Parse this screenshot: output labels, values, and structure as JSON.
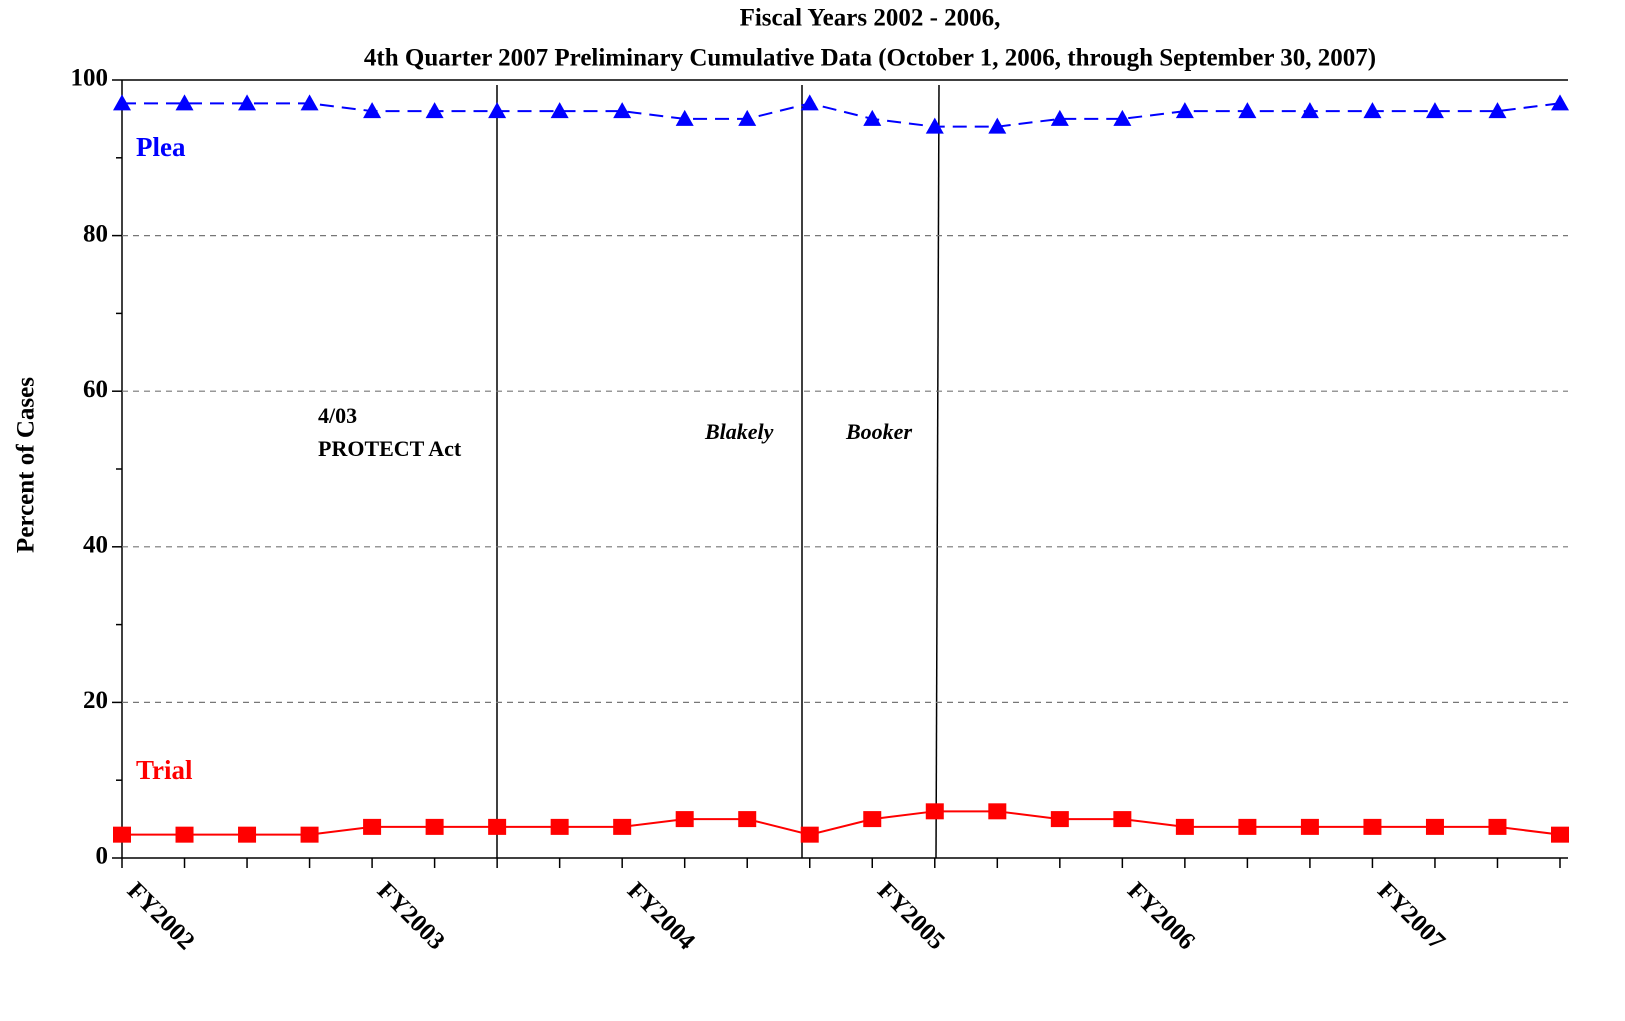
{
  "chart_data": {
    "type": "line",
    "title": "Fiscal Years 2002 - 2006,",
    "subtitle": "4th Quarter 2007 Preliminary Cumulative Data (October 1, 2006, through September 30, 2007)",
    "y_label": "Percent of Cases",
    "categories": [
      "FY2002",
      null,
      null,
      null,
      "FY2003",
      null,
      null,
      null,
      "FY2004",
      null,
      null,
      null,
      "FY2005",
      null,
      null,
      null,
      "FY2006",
      null,
      null,
      null,
      "FY2007",
      null,
      null,
      null
    ],
    "series": [
      {
        "name": "Plea",
        "color": "#0000ff",
        "values": [
          97,
          97,
          97,
          97,
          96,
          96,
          96,
          96,
          96,
          95,
          95,
          97,
          95,
          94,
          94,
          95,
          95,
          96,
          96,
          96,
          96,
          96,
          96,
          97
        ]
      },
      {
        "name": "Trial",
        "color": "#ff0000",
        "values": [
          3,
          3,
          3,
          3,
          4,
          4,
          4,
          4,
          4,
          5,
          5,
          3,
          5,
          6,
          6,
          5,
          5,
          4,
          4,
          4,
          4,
          4,
          4,
          3
        ]
      }
    ],
    "annotations": [
      "4/03",
      "PROTECT Act",
      "Blakely",
      "Booker"
    ],
    "ylim": [
      0,
      100
    ],
    "yticks": [
      0,
      20,
      40,
      60,
      80,
      100
    ],
    "grid": true
  }
}
